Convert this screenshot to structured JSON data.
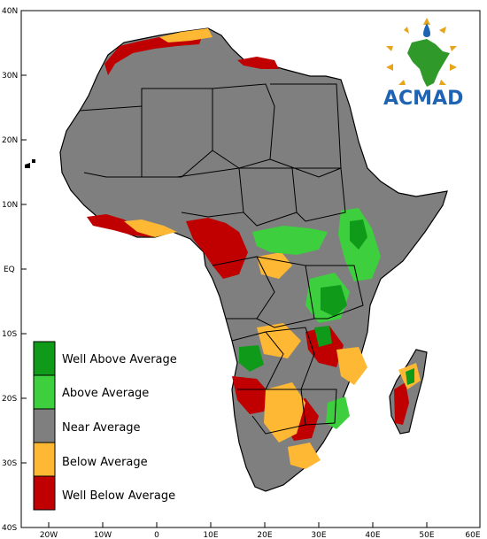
{
  "colors": {
    "well_above": "#0f9a1a",
    "above": "#3dcf3d",
    "near": "#7f7f7f",
    "below": "#ffb833",
    "well_below": "#c00000",
    "ocean": "#ffffff",
    "logo_blue": "#1f64b4",
    "logo_green": "#2f9a2a",
    "logo_gold": "#e8a41a"
  },
  "axes": {
    "x_ticks": [
      "20W",
      "10W",
      "0",
      "10E",
      "20E",
      "30E",
      "40E",
      "50E",
      "60E"
    ],
    "y_ticks": [
      "40N",
      "30N",
      "20N",
      "10N",
      "EQ",
      "10S",
      "20S",
      "30S",
      "40S"
    ]
  },
  "legend": {
    "items": [
      {
        "label": "Well Above Average",
        "color": "#0f9a1a"
      },
      {
        "label": "Above Average",
        "color": "#3dcf3d"
      },
      {
        "label": "Near Average",
        "color": "#7f7f7f"
      },
      {
        "label": "Below Average",
        "color": "#ffb833"
      },
      {
        "label": "Well Below Average",
        "color": "#c00000"
      }
    ]
  },
  "logo": {
    "text": "ACMAD",
    "icon": "africa-sun-drop-logo"
  }
}
